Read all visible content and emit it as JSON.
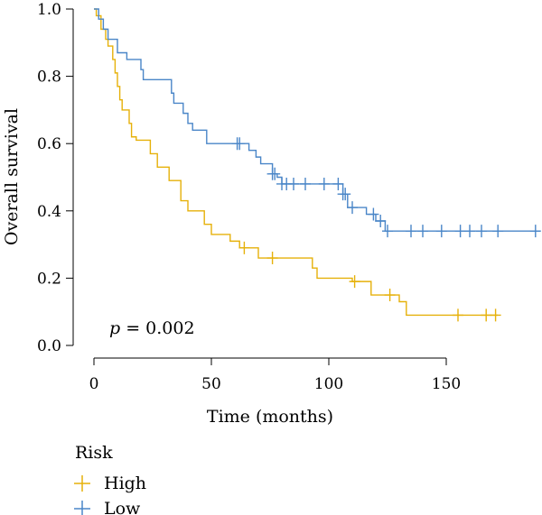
{
  "chart_data": {
    "type": "line",
    "subtype": "kaplan-meier",
    "title": "",
    "xlabel": "Time (months)",
    "ylabel": "Overall survival",
    "xlim": [
      0,
      190
    ],
    "ylim": [
      0,
      1
    ],
    "x_ticks": [
      "0",
      "50",
      "100",
      "150"
    ],
    "y_ticks": [
      "0.0",
      "0.2",
      "0.4",
      "0.6",
      "0.8",
      "1.0"
    ],
    "grid": false,
    "annotation": {
      "italic": "p",
      "text": " = 0.002"
    },
    "legend": {
      "title": "Risk",
      "placement": "bottom-left",
      "entries": [
        "High",
        "Low"
      ]
    },
    "series": [
      {
        "name": "High",
        "color": "#e6b10a",
        "steps": [
          [
            0,
            1.0
          ],
          [
            1,
            0.98
          ],
          [
            3,
            0.94
          ],
          [
            5,
            0.91
          ],
          [
            6,
            0.89
          ],
          [
            8,
            0.85
          ],
          [
            9,
            0.81
          ],
          [
            10,
            0.77
          ],
          [
            11,
            0.73
          ],
          [
            12,
            0.7
          ],
          [
            15,
            0.66
          ],
          [
            16,
            0.62
          ],
          [
            18,
            0.61
          ],
          [
            24,
            0.57
          ],
          [
            27,
            0.53
          ],
          [
            32,
            0.49
          ],
          [
            37,
            0.43
          ],
          [
            40,
            0.4
          ],
          [
            47,
            0.36
          ],
          [
            50,
            0.33
          ],
          [
            58,
            0.31
          ],
          [
            62,
            0.29
          ],
          [
            70,
            0.26
          ],
          [
            93,
            0.23
          ],
          [
            95,
            0.2
          ],
          [
            110,
            0.19
          ],
          [
            118,
            0.15
          ],
          [
            130,
            0.13
          ],
          [
            133,
            0.09
          ]
        ],
        "end": 172,
        "censored": [
          64,
          76,
          111,
          126,
          155,
          167,
          171
        ]
      },
      {
        "name": "Low",
        "color": "#4a86c8",
        "steps": [
          [
            0,
            1.0
          ],
          [
            2,
            0.97
          ],
          [
            4,
            0.94
          ],
          [
            6,
            0.91
          ],
          [
            10,
            0.87
          ],
          [
            14,
            0.85
          ],
          [
            20,
            0.82
          ],
          [
            21,
            0.79
          ],
          [
            33,
            0.75
          ],
          [
            34,
            0.72
          ],
          [
            38,
            0.69
          ],
          [
            40,
            0.66
          ],
          [
            42,
            0.64
          ],
          [
            48,
            0.6
          ],
          [
            66,
            0.58
          ],
          [
            69,
            0.56
          ],
          [
            71,
            0.54
          ],
          [
            76,
            0.51
          ],
          [
            78,
            0.5
          ],
          [
            80,
            0.48
          ],
          [
            106,
            0.45
          ],
          [
            108,
            0.41
          ],
          [
            116,
            0.39
          ],
          [
            120,
            0.37
          ],
          [
            124,
            0.34
          ]
        ],
        "end": 190,
        "censored": [
          61,
          62,
          76,
          77,
          80,
          82,
          85,
          90,
          98,
          104,
          106,
          107,
          110,
          119,
          122,
          125,
          135,
          140,
          148,
          156,
          160,
          165,
          172,
          188
        ]
      }
    ]
  }
}
